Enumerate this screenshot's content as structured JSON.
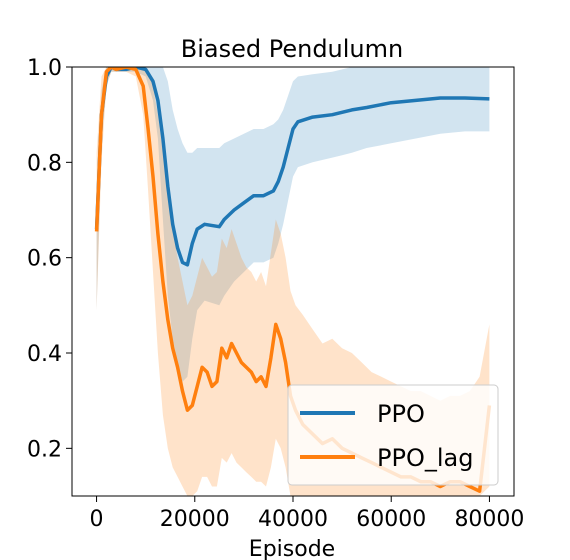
{
  "chart_data": {
    "type": "line",
    "title": "Biased Pendulumn",
    "xlabel": "Episode",
    "ylabel": "",
    "xlim": [
      -5000,
      85000
    ],
    "ylim": [
      0.1,
      1.0
    ],
    "xticks": [
      0,
      20000,
      40000,
      60000,
      80000
    ],
    "xtick_labels": [
      "0",
      "20000",
      "40000",
      "60000",
      "80000"
    ],
    "yticks": [
      0.2,
      0.4,
      0.6,
      0.8,
      1.0
    ],
    "ytick_labels": [
      "0.2",
      "0.4",
      "0.6",
      "0.8",
      "1.0"
    ],
    "grid": false,
    "legend_position": "lower-right",
    "series": [
      {
        "name": "PPO",
        "color": "#1f77b4",
        "x": [
          0,
          1000,
          2000,
          3000,
          4000,
          6000,
          8000,
          10000,
          11500,
          12500,
          13500,
          14500,
          15500,
          16500,
          17500,
          18500,
          19500,
          20500,
          22000,
          25000,
          26000,
          28000,
          30000,
          32000,
          34000,
          36000,
          37000,
          38000,
          39000,
          40000,
          41000,
          44000,
          48000,
          50000,
          52000,
          55000,
          60000,
          65000,
          70000,
          75000,
          80000
        ],
        "values": [
          0.66,
          0.9,
          0.98,
          1.0,
          0.995,
          0.995,
          1.0,
          0.995,
          0.97,
          0.93,
          0.85,
          0.75,
          0.67,
          0.62,
          0.59,
          0.585,
          0.63,
          0.66,
          0.67,
          0.665,
          0.68,
          0.7,
          0.715,
          0.73,
          0.73,
          0.74,
          0.76,
          0.79,
          0.83,
          0.87,
          0.885,
          0.895,
          0.9,
          0.905,
          0.91,
          0.915,
          0.925,
          0.93,
          0.935,
          0.935,
          0.933
        ],
        "band_upper": [
          0.72,
          0.95,
          1.0,
          1.0,
          1.0,
          1.0,
          1.0,
          1.0,
          1.0,
          1.0,
          1.0,
          0.97,
          0.91,
          0.87,
          0.84,
          0.82,
          0.82,
          0.83,
          0.83,
          0.83,
          0.84,
          0.85,
          0.86,
          0.87,
          0.87,
          0.88,
          0.89,
          0.91,
          0.94,
          0.97,
          0.98,
          0.985,
          0.99,
          0.995,
          1.0,
          1.0,
          1.0,
          1.0,
          1.0,
          1.0,
          1.0
        ],
        "band_lower": [
          0.49,
          0.84,
          0.96,
          0.99,
          0.99,
          0.99,
          0.99,
          0.98,
          0.93,
          0.85,
          0.68,
          0.52,
          0.43,
          0.38,
          0.34,
          0.35,
          0.43,
          0.49,
          0.51,
          0.5,
          0.52,
          0.55,
          0.57,
          0.59,
          0.59,
          0.6,
          0.63,
          0.67,
          0.72,
          0.77,
          0.79,
          0.8,
          0.81,
          0.815,
          0.82,
          0.83,
          0.84,
          0.85,
          0.86,
          0.865,
          0.865
        ]
      },
      {
        "name": "PPO_lag",
        "color": "#ff7f0e",
        "x": [
          0,
          1000,
          2000,
          3000,
          4000,
          6000,
          8000,
          9500,
          10500,
          11500,
          12500,
          13500,
          14500,
          15500,
          16500,
          17500,
          18500,
          19500,
          20500,
          21500,
          22500,
          23500,
          24500,
          25500,
          26500,
          27500,
          28500,
          29500,
          30500,
          31500,
          32500,
          33500,
          34500,
          35500,
          36500,
          37500,
          38500,
          39500,
          40500,
          42000,
          44000,
          46000,
          48000,
          50000,
          52000,
          54000,
          56000,
          58000,
          60000,
          62000,
          64000,
          66000,
          68000,
          70000,
          72000,
          74000,
          76000,
          78000,
          80000
        ],
        "values": [
          0.655,
          0.9,
          0.99,
          1.0,
          0.995,
          1.0,
          0.995,
          0.96,
          0.87,
          0.77,
          0.65,
          0.55,
          0.47,
          0.41,
          0.37,
          0.32,
          0.28,
          0.29,
          0.33,
          0.37,
          0.36,
          0.33,
          0.34,
          0.41,
          0.39,
          0.42,
          0.4,
          0.38,
          0.37,
          0.36,
          0.34,
          0.35,
          0.33,
          0.39,
          0.46,
          0.43,
          0.38,
          0.31,
          0.28,
          0.25,
          0.23,
          0.21,
          0.22,
          0.2,
          0.19,
          0.18,
          0.17,
          0.16,
          0.15,
          0.14,
          0.14,
          0.13,
          0.13,
          0.12,
          0.13,
          0.13,
          0.12,
          0.11,
          0.29
        ],
        "band_upper": [
          0.82,
          0.98,
          1.0,
          1.0,
          1.0,
          1.0,
          1.0,
          1.0,
          0.99,
          0.96,
          0.9,
          0.82,
          0.74,
          0.66,
          0.6,
          0.55,
          0.5,
          0.52,
          0.56,
          0.6,
          0.58,
          0.56,
          0.57,
          0.64,
          0.62,
          0.66,
          0.63,
          0.6,
          0.58,
          0.57,
          0.55,
          0.57,
          0.54,
          0.61,
          0.68,
          0.65,
          0.6,
          0.53,
          0.5,
          0.48,
          0.45,
          0.42,
          0.43,
          0.41,
          0.4,
          0.38,
          0.36,
          0.35,
          0.34,
          0.33,
          0.32,
          0.32,
          0.31,
          0.3,
          0.31,
          0.31,
          0.32,
          0.35,
          0.46
        ],
        "band_lower": [
          0.49,
          0.8,
          0.96,
          0.99,
          0.99,
          0.99,
          0.98,
          0.9,
          0.74,
          0.57,
          0.4,
          0.27,
          0.2,
          0.16,
          0.14,
          0.12,
          0.1,
          0.1,
          0.11,
          0.14,
          0.14,
          0.12,
          0.12,
          0.18,
          0.17,
          0.19,
          0.17,
          0.16,
          0.15,
          0.14,
          0.13,
          0.13,
          0.12,
          0.16,
          0.22,
          0.2,
          0.16,
          0.1,
          0.1,
          0.1,
          0.1,
          0.1,
          0.1,
          0.1,
          0.1,
          0.1,
          0.1,
          0.1,
          0.1,
          0.1,
          0.1,
          0.1,
          0.1,
          0.1,
          0.1,
          0.1,
          0.1,
          0.1,
          0.12
        ]
      }
    ]
  }
}
